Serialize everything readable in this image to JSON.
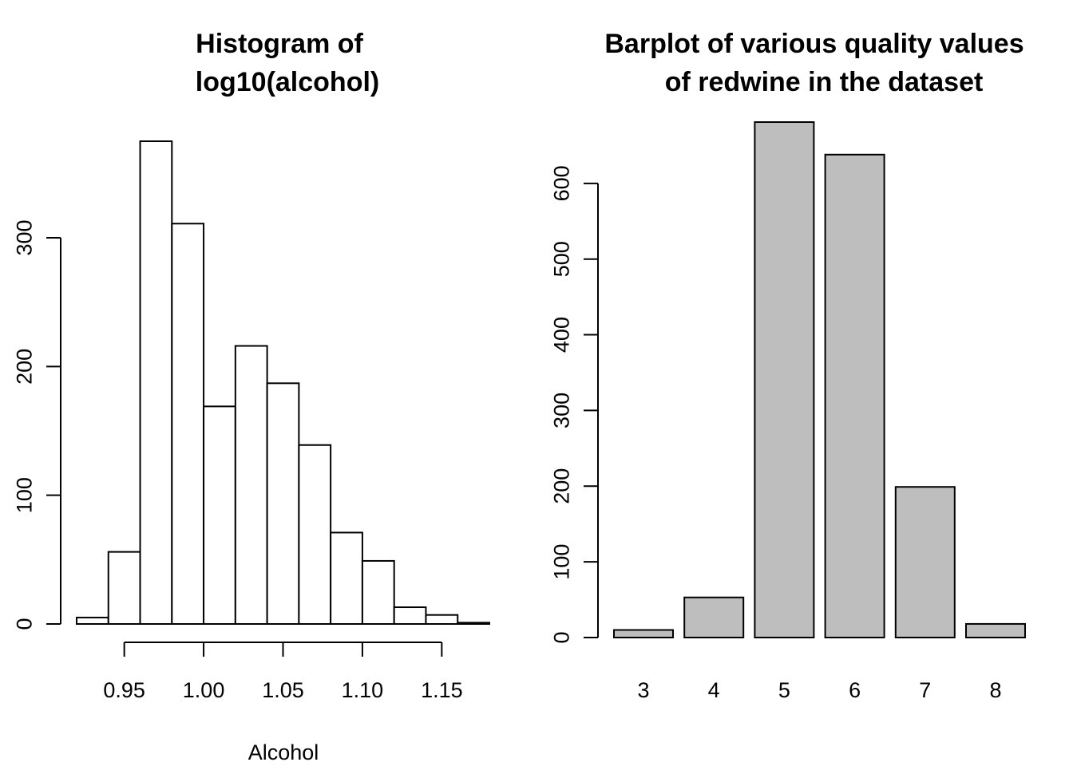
{
  "chart_data": [
    {
      "type": "bar",
      "subtype": "histogram",
      "title_lines": [
        "Histogram of",
        "log10(alcohol)"
      ],
      "xlabel": "Alcohol",
      "ylabel": "",
      "bin_edges": [
        0.92,
        0.94,
        0.96,
        0.98,
        1.0,
        1.02,
        1.04,
        1.06,
        1.08,
        1.1,
        1.12,
        1.14,
        1.16,
        1.18
      ],
      "values": [
        5,
        56,
        375,
        311,
        169,
        216,
        187,
        139,
        71,
        49,
        13,
        7,
        1
      ],
      "xticks": [
        0.95,
        1.0,
        1.05,
        1.1,
        1.15
      ],
      "xtick_labels": [
        "0.95",
        "1.00",
        "1.05",
        "1.10",
        "1.15"
      ],
      "xlim": [
        0.92,
        1.18
      ],
      "yticks": [
        0,
        100,
        200,
        300
      ],
      "ytick_labels": [
        "0",
        "100",
        "200",
        "300"
      ],
      "ylim": [
        0,
        375
      ],
      "fill_color": "#ffffff",
      "stroke_color": "#000000"
    },
    {
      "type": "bar",
      "title_lines": [
        "Barplot of various quality values",
        "of redwine in the dataset"
      ],
      "xlabel": "",
      "ylabel": "",
      "categories": [
        "3",
        "4",
        "5",
        "6",
        "7",
        "8"
      ],
      "values": [
        10,
        53,
        681,
        638,
        199,
        18
      ],
      "yticks": [
        0,
        100,
        200,
        300,
        400,
        500,
        600
      ],
      "ytick_labels": [
        "0",
        "100",
        "200",
        "300",
        "400",
        "500",
        "600"
      ],
      "ylim": [
        0,
        681
      ],
      "fill_color": "#bebebe",
      "stroke_color": "#000000"
    }
  ]
}
